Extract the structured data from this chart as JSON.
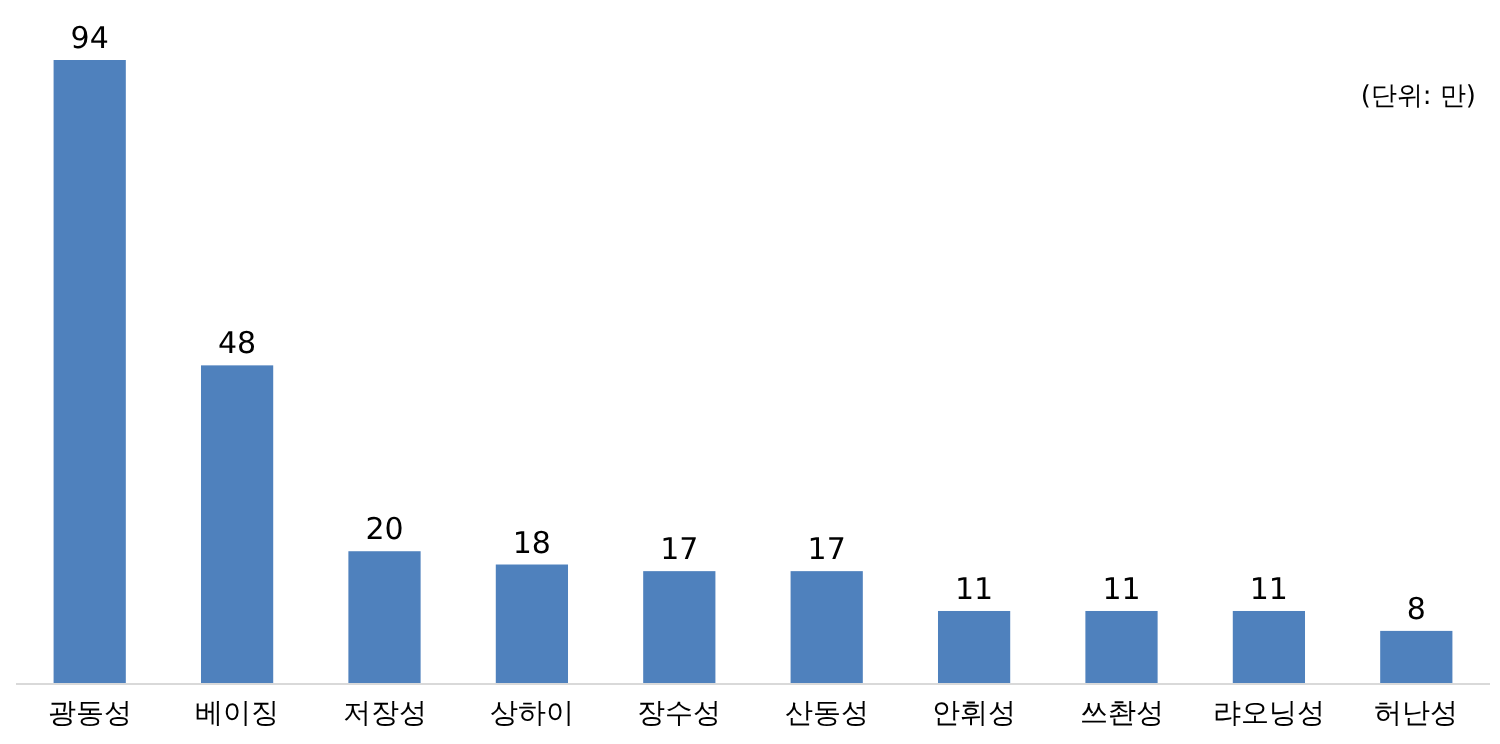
{
  "chart_data": {
    "type": "bar",
    "categories": [
      "광동성",
      "베이징",
      "저장성",
      "상하이",
      "장수성",
      "산동성",
      "안휘성",
      "쓰촨성",
      "랴오닝성",
      "허난성"
    ],
    "values": [
      94,
      48,
      20,
      18,
      17,
      17,
      11,
      11,
      11,
      8
    ],
    "color": "#4f81bd",
    "data_labels": true,
    "annotations": [
      "(단위: 만)"
    ]
  }
}
